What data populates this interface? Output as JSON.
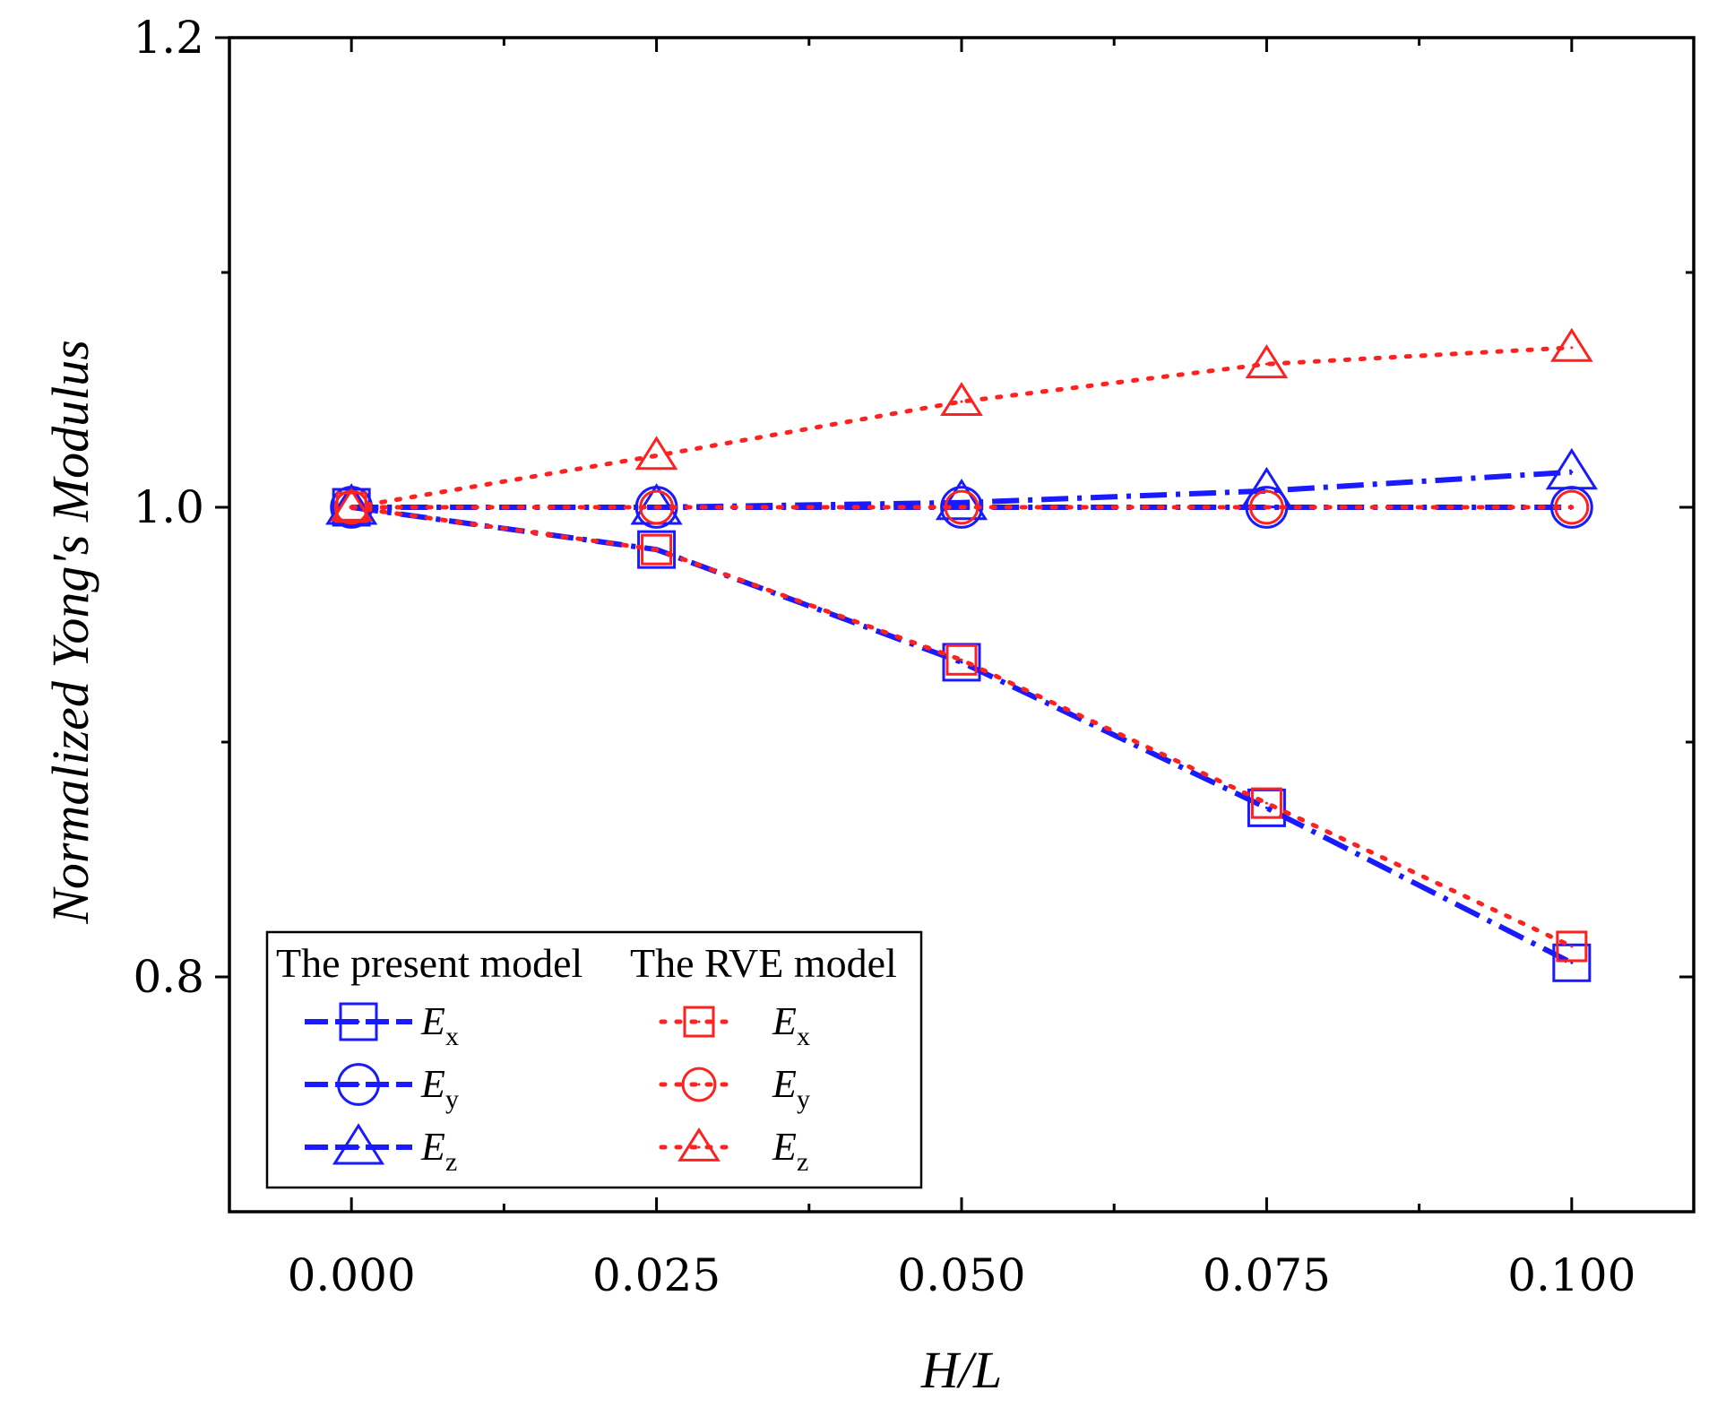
{
  "chart_data": {
    "type": "line",
    "xlabel": "H/L",
    "ylabel": "Normalized Yong's Modulus",
    "xlim": [
      -0.01,
      0.11
    ],
    "ylim": [
      0.7,
      1.2
    ],
    "x": [
      0.0,
      0.025,
      0.05,
      0.075,
      0.1
    ],
    "x_tick_labels": [
      "0.000",
      "0.025",
      "0.050",
      "0.075",
      "0.100"
    ],
    "y_tick_labels": [
      "0.8",
      "1.0",
      "1.2"
    ],
    "y_tick_values": [
      0.8,
      1.0,
      1.2
    ],
    "grid": false,
    "legend_position": "bottom-left",
    "legend": {
      "group_present": "The present model",
      "group_rve": "The RVE model"
    },
    "series": [
      {
        "name": "Ex",
        "label_main": "E",
        "label_sub": "x",
        "group": "present",
        "marker": "square",
        "color": "#1a1aff",
        "linestyle": "dashdot",
        "values": [
          1.0,
          0.982,
          0.934,
          0.872,
          0.806
        ]
      },
      {
        "name": "Ey",
        "label_main": "E",
        "label_sub": "y",
        "group": "present",
        "marker": "circle",
        "color": "#1a1aff",
        "linestyle": "dashdot",
        "values": [
          1.0,
          1.0,
          1.0,
          1.0,
          1.0
        ]
      },
      {
        "name": "Ez",
        "label_main": "E",
        "label_sub": "z",
        "group": "present",
        "marker": "triangle",
        "color": "#1a1aff",
        "linestyle": "dashdot",
        "values": [
          1.0,
          1.0,
          1.002,
          1.007,
          1.015
        ]
      },
      {
        "name": "Ex",
        "label_main": "E",
        "label_sub": "x",
        "group": "rve",
        "marker": "square",
        "color": "#ff2020",
        "linestyle": "dotted",
        "values": [
          1.0,
          0.982,
          0.935,
          0.874,
          0.813
        ]
      },
      {
        "name": "Ey",
        "label_main": "E",
        "label_sub": "y",
        "group": "rve",
        "marker": "circle",
        "color": "#ff2020",
        "linestyle": "dotted",
        "values": [
          1.0,
          1.0,
          1.0,
          1.0,
          1.0
        ]
      },
      {
        "name": "Ez",
        "label_main": "E",
        "label_sub": "z",
        "group": "rve",
        "marker": "triangle",
        "color": "#ff2020",
        "linestyle": "dotted",
        "values": [
          1.0,
          1.022,
          1.045,
          1.061,
          1.068
        ]
      }
    ]
  }
}
